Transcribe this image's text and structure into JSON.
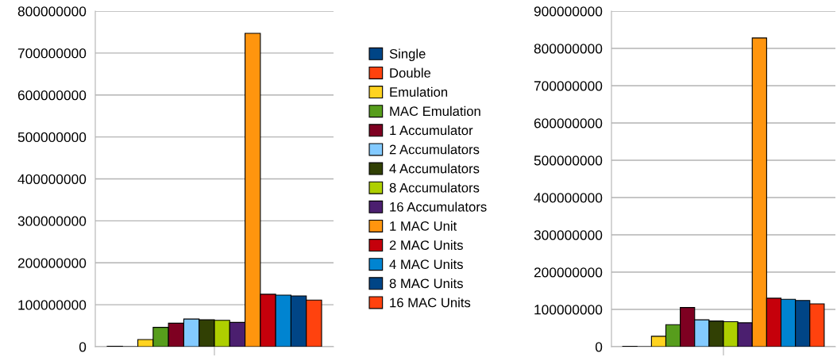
{
  "chart_data": [
    {
      "type": "bar",
      "categories": [
        null
      ],
      "ylim": [
        0,
        800000000
      ],
      "yticks": [
        0,
        100000000,
        200000000,
        300000000,
        400000000,
        500000000,
        600000000,
        700000000,
        800000000
      ],
      "grid": "y",
      "legend": "right",
      "series": [
        {
          "name": "Single",
          "color": "#004586",
          "values": [
            1000000
          ]
        },
        {
          "name": "Double",
          "color": "#ff420e",
          "values": [
            null
          ]
        },
        {
          "name": "Emulation",
          "color": "#ffd320",
          "values": [
            17000000
          ]
        },
        {
          "name": "MAC Emulation",
          "color": "#579d1c",
          "values": [
            46000000
          ]
        },
        {
          "name": "1 Accumulator",
          "color": "#7e0021",
          "values": [
            56000000
          ]
        },
        {
          "name": "2 Accumulators",
          "color": "#83caff",
          "values": [
            66000000
          ]
        },
        {
          "name": "4 Accumulators",
          "color": "#314004",
          "values": [
            64000000
          ]
        },
        {
          "name": "8 Accumulators",
          "color": "#aecf00",
          "values": [
            63000000
          ]
        },
        {
          "name": "16 Accumulators",
          "color": "#4b1f6f",
          "values": [
            58000000
          ]
        },
        {
          "name": "1 MAC Unit",
          "color": "#ff950e",
          "values": [
            747000000
          ]
        },
        {
          "name": "2 MAC Units",
          "color": "#c5000b",
          "values": [
            125000000
          ]
        },
        {
          "name": "4 MAC Units",
          "color": "#0084d1",
          "values": [
            123000000
          ]
        },
        {
          "name": "8 MAC Units",
          "color": "#004586",
          "values": [
            121000000
          ]
        },
        {
          "name": "16 MAC Units",
          "color": "#ff420e",
          "values": [
            111000000
          ]
        }
      ]
    },
    {
      "type": "bar",
      "categories": [
        null
      ],
      "ylim": [
        0,
        900000000
      ],
      "yticks": [
        0,
        100000000,
        200000000,
        300000000,
        400000000,
        500000000,
        600000000,
        700000000,
        800000000,
        900000000
      ],
      "grid": "y",
      "series": [
        {
          "color": "#004586",
          "values": [
            1000000
          ]
        },
        {
          "color": "#ff420e",
          "values": [
            null
          ]
        },
        {
          "color": "#ffd320",
          "values": [
            28000000
          ]
        },
        {
          "color": "#579d1c",
          "values": [
            59000000
          ]
        },
        {
          "color": "#7e0021",
          "values": [
            105000000
          ]
        },
        {
          "color": "#83caff",
          "values": [
            72000000
          ]
        },
        {
          "color": "#314004",
          "values": [
            69000000
          ]
        },
        {
          "color": "#aecf00",
          "values": [
            67000000
          ]
        },
        {
          "color": "#4b1f6f",
          "values": [
            64000000
          ]
        },
        {
          "color": "#ff950e",
          "values": [
            828000000
          ]
        },
        {
          "color": "#c5000b",
          "values": [
            130000000
          ]
        },
        {
          "color": "#0084d1",
          "values": [
            127000000
          ]
        },
        {
          "color": "#004586",
          "values": [
            124000000
          ]
        },
        {
          "color": "#ff420e",
          "values": [
            115000000
          ]
        }
      ]
    }
  ]
}
